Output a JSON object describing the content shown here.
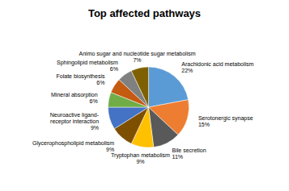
{
  "chart_data": {
    "type": "pie",
    "title": "Top affected pathways",
    "categories": [
      "Arachidonic acid metabolism",
      "Serotonergic synapse",
      "Bile secretion",
      "Tryptophan metabolism",
      "Glycerophospholipid metabolism",
      "Neuroactive ligand-\nreceptor interaction",
      "Mineral absorption",
      "Folate biosynthesis",
      "Sphingolipid metabolism",
      "Animo sugar and nucleotide sugar metabolism"
    ],
    "values": [
      22,
      15,
      11,
      9,
      9,
      9,
      6,
      6,
      6,
      7
    ],
    "value_labels": [
      "22%",
      "15%",
      "11%",
      "9%",
      "9%",
      "9%",
      "6%",
      "6%",
      "6%",
      "7%"
    ],
    "colors": [
      "#5b9bd5",
      "#ed7d31",
      "#595959",
      "#ffc000",
      "#7f4f00",
      "#4472c4",
      "#70ad47",
      "#c55a11",
      "#808080",
      "#7f6000"
    ]
  }
}
